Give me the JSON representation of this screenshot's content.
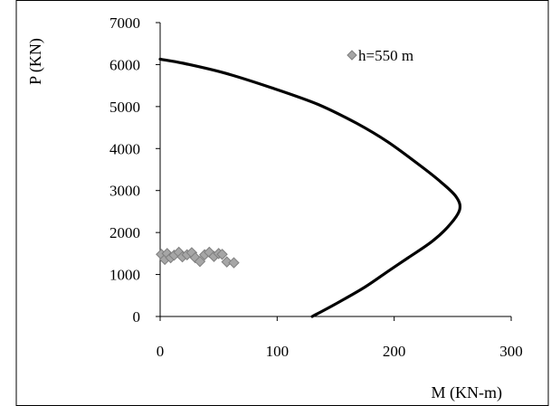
{
  "chart_data": {
    "type": "scatter",
    "xlabel": "M (KN-m)",
    "ylabel": "P (KN)",
    "xlim": [
      0,
      300
    ],
    "ylim": [
      0,
      7000
    ],
    "x_ticks": [
      "0",
      "100",
      "200",
      "300"
    ],
    "y_ticks": [
      "0",
      "1000",
      "2000",
      "3000",
      "4000",
      "5000",
      "6000",
      "7000"
    ],
    "grid": false,
    "legend_position": "top-right",
    "series": [
      {
        "name": "",
        "kind": "line",
        "color": "#000000",
        "points": [
          [
            130,
            0
          ],
          [
            150,
            300
          ],
          [
            175,
            700
          ],
          [
            196,
            1100
          ],
          [
            212,
            1400
          ],
          [
            233,
            1800
          ],
          [
            248,
            2200
          ],
          [
            256,
            2550
          ],
          [
            253,
            2850
          ],
          [
            240,
            3200
          ],
          [
            222,
            3600
          ],
          [
            195,
            4150
          ],
          [
            168,
            4600
          ],
          [
            135,
            5050
          ],
          [
            95,
            5450
          ],
          [
            55,
            5800
          ],
          [
            20,
            6030
          ],
          [
            0,
            6130
          ]
        ]
      },
      {
        "name": "h=550 m",
        "kind": "scatter",
        "marker": "diamond",
        "color": "#a6a6a6",
        "points": [
          [
            1,
            1480
          ],
          [
            4,
            1360
          ],
          [
            6,
            1500
          ],
          [
            9,
            1400
          ],
          [
            12,
            1460
          ],
          [
            16,
            1530
          ],
          [
            19,
            1420
          ],
          [
            23,
            1470
          ],
          [
            27,
            1520
          ],
          [
            30,
            1400
          ],
          [
            34,
            1310
          ],
          [
            38,
            1470
          ],
          [
            42,
            1530
          ],
          [
            46,
            1430
          ],
          [
            50,
            1500
          ],
          [
            53,
            1480
          ],
          [
            57,
            1300
          ],
          [
            63,
            1280
          ]
        ]
      }
    ]
  }
}
